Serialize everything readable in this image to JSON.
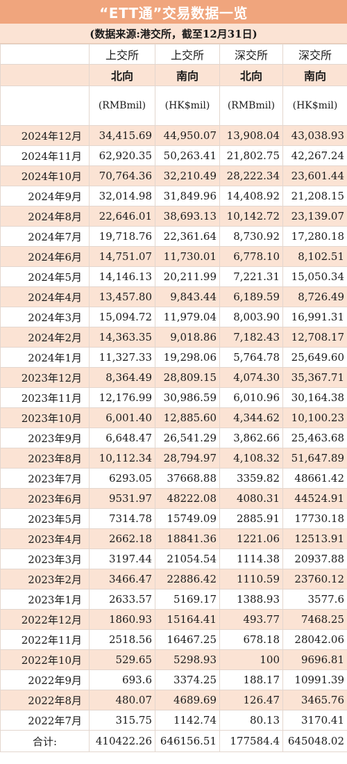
{
  "title": "“ETT通”交易数据一览",
  "subtitle": "(数据来源:港交所，截至12月31日)",
  "columns": [
    {
      "exchange": "上交所",
      "direction": "北向",
      "unit": "(RMBmil)"
    },
    {
      "exchange": "上交所",
      "direction": "南向",
      "unit": "(HK$mil)"
    },
    {
      "exchange": "深交所",
      "direction": "北向",
      "unit": "(RMBmil)"
    },
    {
      "exchange": "深交所",
      "direction": "南向",
      "unit": "(HK$mil)"
    }
  ],
  "rows": [
    {
      "period": "2024年12月",
      "v": [
        "34,415.69",
        "44,950.07",
        "13,908.04",
        "43,038.93"
      ]
    },
    {
      "period": "2024年11月",
      "v": [
        "62,920.35",
        "50,263.41",
        "21,802.75",
        "42,267.24"
      ]
    },
    {
      "period": "2024年10月",
      "v": [
        "70,764.36",
        "32,210.49",
        "28,222.34",
        "23,601.44"
      ]
    },
    {
      "period": "2024年9月",
      "v": [
        "32,014.98",
        "31,849.96",
        "14,408.92",
        "21,208.15"
      ]
    },
    {
      "period": "2024年8月",
      "v": [
        "22,646.01",
        "38,693.13",
        "10,142.72",
        "23,139.07"
      ]
    },
    {
      "period": "2024年7月",
      "v": [
        "19,718.76",
        "22,361.64",
        "8,730.92",
        "17,280.18"
      ]
    },
    {
      "period": "2024年6月",
      "v": [
        "14,751.07",
        "11,730.01",
        "6,778.10",
        "8,102.51"
      ]
    },
    {
      "period": "2024年5月",
      "v": [
        "14,146.13",
        "20,211.99",
        "7,221.31",
        "15,050.34"
      ]
    },
    {
      "period": "2024年4月",
      "v": [
        "13,457.80",
        "9,843.44",
        "6,189.59",
        "8,726.49"
      ]
    },
    {
      "period": "2024年3月",
      "v": [
        "15,094.72",
        "11,979.04",
        "8,003.90",
        "16,991.31"
      ]
    },
    {
      "period": "2024年2月",
      "v": [
        "14,363.35",
        "9,018.86",
        "7,182.43",
        "12,708.17"
      ]
    },
    {
      "period": "2024年1月",
      "v": [
        "11,327.33",
        "19,298.06",
        "5,764.78",
        "25,649.60"
      ]
    },
    {
      "period": "2023年12月",
      "v": [
        "8,364.49",
        "28,809.15",
        "4,074.30",
        "35,367.71"
      ]
    },
    {
      "period": "2023年11月",
      "v": [
        "12,176.99",
        "30,986.59",
        "6,010.96",
        "30,164.38"
      ]
    },
    {
      "period": "2023年10月",
      "v": [
        "6,001.40",
        "12,885.60",
        "4,344.62",
        "10,100.23"
      ]
    },
    {
      "period": "2023年9月",
      "v": [
        "6,648.47",
        "26,541.29",
        "3,862.66",
        "25,463.68"
      ]
    },
    {
      "period": "2023年8月",
      "v": [
        "10,112.34",
        "28,794.97",
        "4,108.32",
        "51,647.89"
      ]
    },
    {
      "period": "2023年7月",
      "v": [
        "6293.05",
        "37668.88",
        "3359.82",
        "48661.42"
      ]
    },
    {
      "period": "2023年6月",
      "v": [
        "9531.97",
        "48222.08",
        "4080.31",
        "44524.91"
      ]
    },
    {
      "period": "2023年5月",
      "v": [
        "7314.78",
        "15749.09",
        "2885.91",
        "17730.18"
      ]
    },
    {
      "period": "2023年4月",
      "v": [
        "2662.18",
        "18841.36",
        "1221.06",
        "12513.91"
      ]
    },
    {
      "period": "2023年3月",
      "v": [
        "3197.44",
        "21054.54",
        "1114.38",
        "20937.88"
      ]
    },
    {
      "period": "2023年2月",
      "v": [
        "3466.47",
        "22886.42",
        "1110.59",
        "23760.12"
      ]
    },
    {
      "period": "2023年1月",
      "v": [
        "2633.57",
        "5169.17",
        "1388.93",
        "3577.6"
      ]
    },
    {
      "period": "2022年12月",
      "v": [
        "1860.93",
        "15164.41",
        "493.77",
        "7468.25"
      ]
    },
    {
      "period": "2022年11月",
      "v": [
        "2518.56",
        "16467.25",
        "678.18",
        "28042.06"
      ]
    },
    {
      "period": "2022年10月",
      "v": [
        "529.65",
        "5298.93",
        "100",
        "9696.81"
      ]
    },
    {
      "period": "2022年9月",
      "v": [
        "693.6",
        "3374.25",
        "188.17",
        "10991.39"
      ]
    },
    {
      "period": "2022年8月",
      "v": [
        "480.07",
        "4689.69",
        "126.47",
        "3465.76"
      ]
    },
    {
      "period": "2022年7月",
      "v": [
        "315.75",
        "1142.74",
        "80.13",
        "3170.41"
      ]
    }
  ],
  "total": {
    "label": "合计:",
    "v": [
      "410422.26",
      "646156.51",
      "177584.4",
      "645048.02"
    ]
  },
  "colors": {
    "title_bg": "#f0a57d",
    "stripe_bg": "#fbe3d4",
    "border": "#e3d6ce"
  }
}
